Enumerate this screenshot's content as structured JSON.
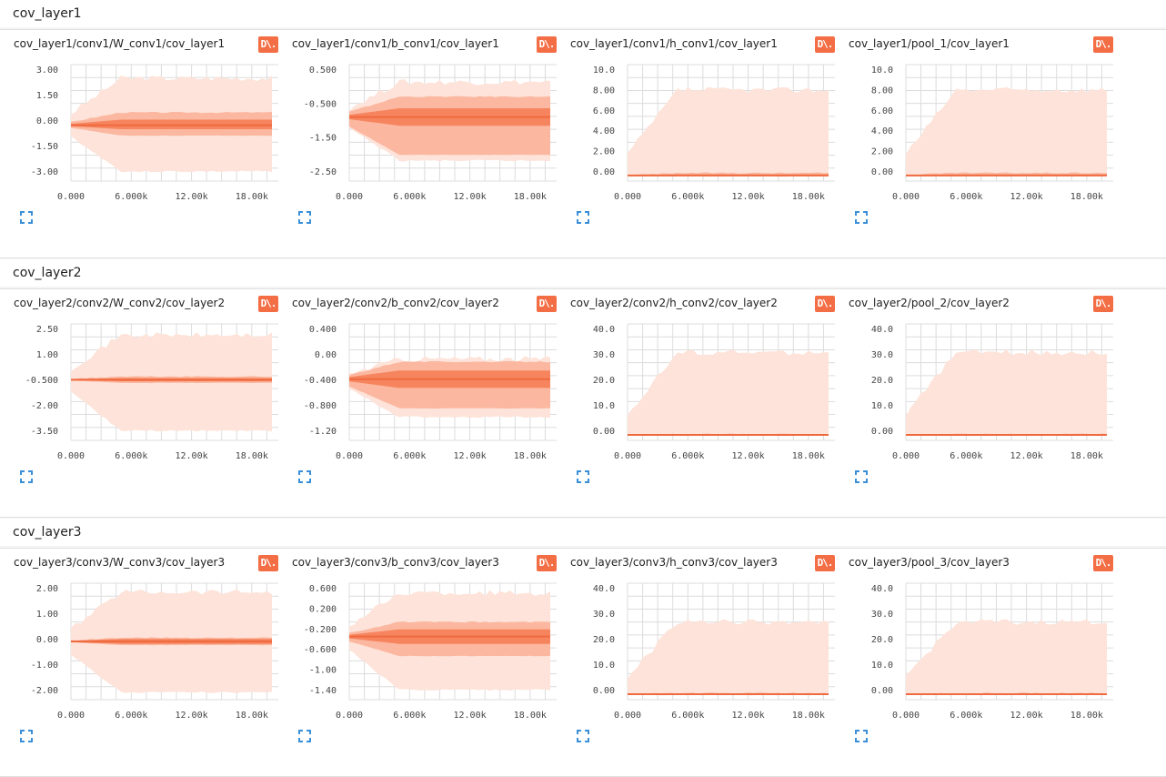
{
  "sections": [
    {
      "title": "cov_layer1",
      "cards": [
        {
          "title": "cov_layer1/conv1/W_conv1/cov_layer1",
          "download_label": "D\\.",
          "y_ticks": [
            "3.00",
            "1.50",
            "0.00",
            "-1.50",
            "-3.00"
          ],
          "x_ticks": [
            "0.000",
            "6.000k",
            "12.00k",
            "18.00k"
          ]
        },
        {
          "title": "cov_layer1/conv1/b_conv1/cov_layer1",
          "download_label": "D\\.",
          "y_ticks": [
            "0.500",
            "-0.500",
            "-1.50",
            "-2.50"
          ],
          "x_ticks": [
            "0.000",
            "6.000k",
            "12.00k",
            "18.00k"
          ]
        },
        {
          "title": "cov_layer1/conv1/h_conv1/cov_layer1",
          "download_label": "D\\.",
          "y_ticks": [
            "10.0",
            "8.00",
            "6.00",
            "4.00",
            "2.00",
            "0.00"
          ],
          "x_ticks": [
            "0.000",
            "6.000k",
            "12.00k",
            "18.00k"
          ]
        },
        {
          "title": "cov_layer1/pool_1/cov_layer1",
          "download_label": "D\\.",
          "y_ticks": [
            "10.0",
            "8.00",
            "6.00",
            "4.00",
            "2.00",
            "0.00"
          ],
          "x_ticks": [
            "0.000",
            "6.000k",
            "12.00k",
            "18.00k"
          ]
        }
      ]
    },
    {
      "title": "cov_layer2",
      "cards": [
        {
          "title": "cov_layer2/conv2/W_conv2/cov_layer2",
          "download_label": "D\\.",
          "y_ticks": [
            "2.50",
            "1.00",
            "-0.500",
            "-2.00",
            "-3.50"
          ],
          "x_ticks": [
            "0.000",
            "6.000k",
            "12.00k",
            "18.00k"
          ]
        },
        {
          "title": "cov_layer2/conv2/b_conv2/cov_layer2",
          "download_label": "D\\.",
          "y_ticks": [
            "0.400",
            "0.00",
            "-0.400",
            "-0.800",
            "-1.20"
          ],
          "x_ticks": [
            "0.000",
            "6.000k",
            "12.00k",
            "18.00k"
          ]
        },
        {
          "title": "cov_layer2/conv2/h_conv2/cov_layer2",
          "download_label": "D\\.",
          "y_ticks": [
            "40.0",
            "30.0",
            "20.0",
            "10.0",
            "0.00"
          ],
          "x_ticks": [
            "0.000",
            "6.000k",
            "12.00k",
            "18.00k"
          ]
        },
        {
          "title": "cov_layer2/pool_2/cov_layer2",
          "download_label": "D\\.",
          "y_ticks": [
            "40.0",
            "30.0",
            "20.0",
            "10.0",
            "0.00"
          ],
          "x_ticks": [
            "0.000",
            "6.000k",
            "12.00k",
            "18.00k"
          ]
        }
      ]
    },
    {
      "title": "cov_layer3",
      "cards": [
        {
          "title": "cov_layer3/conv3/W_conv3/cov_layer3",
          "download_label": "D\\.",
          "y_ticks": [
            "2.00",
            "1.00",
            "0.00",
            "-1.00",
            "-2.00"
          ],
          "x_ticks": [
            "0.000",
            "6.000k",
            "12.00k",
            "18.00k"
          ]
        },
        {
          "title": "cov_layer3/conv3/b_conv3/cov_layer3",
          "download_label": "D\\.",
          "y_ticks": [
            "0.600",
            "0.200",
            "-0.200",
            "-0.600",
            "-1.00",
            "-1.40"
          ],
          "x_ticks": [
            "0.000",
            "6.000k",
            "12.00k",
            "18.00k"
          ]
        },
        {
          "title": "cov_layer3/conv3/h_conv3/cov_layer3",
          "download_label": "D\\.",
          "y_ticks": [
            "40.0",
            "30.0",
            "20.0",
            "10.0",
            "0.00"
          ],
          "x_ticks": [
            "0.000",
            "6.000k",
            "12.00k",
            "18.00k"
          ]
        },
        {
          "title": "cov_layer3/pool_3/cov_layer3",
          "download_label": "D\\.",
          "y_ticks": [
            "40.0",
            "30.0",
            "20.0",
            "10.0",
            "0.00"
          ],
          "x_ticks": [
            "0.000",
            "6.000k",
            "12.00k",
            "18.00k"
          ]
        }
      ]
    }
  ],
  "colors": {
    "band_outer": "#fde3d9",
    "band_mid": "#fbb79f",
    "band_inner": "#f6855f",
    "median": "#ef6a3f",
    "grid": "#dcdcdc",
    "expand": "#3a8fd8"
  },
  "icons": {
    "download": "download-data-icon",
    "expand": "expand-icon"
  },
  "chart_data": [
    {
      "type": "area",
      "title": "cov_layer1/conv1/W_conv1/cov_layer1",
      "x": [
        0,
        20000
      ],
      "ylim": [
        -3.5,
        3.8
      ],
      "bands": {
        "outer": [
          -2.9,
          2.95
        ],
        "mid": [
          -0.65,
          0.8
        ],
        "inner": [
          -0.25,
          0.35
        ],
        "median": 0.0
      }
    },
    {
      "type": "area",
      "title": "cov_layer1/conv1/b_conv1/cov_layer1",
      "x": [
        0,
        20000
      ],
      "ylim": [
        -3.0,
        1.0
      ],
      "bands": {
        "outer": [
          -2.3,
          0.4
        ],
        "mid": [
          -2.1,
          -0.1
        ],
        "inner": [
          -1.1,
          -0.5
        ],
        "median": -0.8
      }
    },
    {
      "type": "area",
      "title": "cov_layer1/conv1/h_conv1/cov_layer1",
      "x": [
        0,
        20000
      ],
      "ylim": [
        -0.5,
        11
      ],
      "bands": {
        "outer": [
          0,
          8.5
        ],
        "mid": [
          0,
          0.3
        ],
        "inner": [
          0,
          0.15
        ],
        "median": 0.05
      }
    },
    {
      "type": "area",
      "title": "cov_layer1/pool_1/cov_layer1",
      "x": [
        0,
        20000
      ],
      "ylim": [
        -0.5,
        11
      ],
      "bands": {
        "outer": [
          0,
          8.5
        ],
        "mid": [
          0,
          0.3
        ],
        "inner": [
          0,
          0.15
        ],
        "median": 0.05
      }
    },
    {
      "type": "area",
      "title": "cov_layer2/conv2/W_conv2/cov_layer2",
      "x": [
        0,
        20000
      ],
      "ylim": [
        -4,
        3.2
      ],
      "bands": {
        "outer": [
          -3.4,
          2.5
        ],
        "mid": [
          -0.45,
          -0.05
        ],
        "inner": [
          -0.35,
          -0.15
        ],
        "median": -0.25
      }
    },
    {
      "type": "area",
      "title": "cov_layer2/conv2/b_conv2/cov_layer2",
      "x": [
        0,
        20000
      ],
      "ylim": [
        -1.4,
        0.6
      ],
      "bands": {
        "outer": [
          -1.0,
          0.0
        ],
        "mid": [
          -0.85,
          -0.05
        ],
        "inner": [
          -0.5,
          -0.2
        ],
        "median": -0.35
      }
    },
    {
      "type": "area",
      "title": "cov_layer2/conv2/h_conv2/cov_layer2",
      "x": [
        0,
        20000
      ],
      "ylim": [
        -2,
        43
      ],
      "bands": {
        "outer": [
          0,
          32
        ],
        "mid": [
          0,
          0.4
        ],
        "inner": [
          0,
          0.2
        ],
        "median": 0.1
      }
    },
    {
      "type": "area",
      "title": "cov_layer2/pool_2/cov_layer2",
      "x": [
        0,
        20000
      ],
      "ylim": [
        -2,
        43
      ],
      "bands": {
        "outer": [
          0,
          32
        ],
        "mid": [
          0,
          0.4
        ],
        "inner": [
          0,
          0.2
        ],
        "median": 0.1
      }
    },
    {
      "type": "area",
      "title": "cov_layer3/conv3/W_conv3/cov_layer3",
      "x": [
        0,
        20000
      ],
      "ylim": [
        -2.4,
        2.4
      ],
      "bands": {
        "outer": [
          -2.1,
          2.05
        ],
        "mid": [
          -0.15,
          0.15
        ],
        "inner": [
          -0.1,
          0.1
        ],
        "median": 0.0
      }
    },
    {
      "type": "area",
      "title": "cov_layer3/conv3/b_conv3/cov_layer3",
      "x": [
        0,
        20000
      ],
      "ylim": [
        -1.6,
        0.8
      ],
      "bands": {
        "outer": [
          -1.4,
          0.6
        ],
        "mid": [
          -0.7,
          0.0
        ],
        "inner": [
          -0.45,
          -0.15
        ],
        "median": -0.3
      }
    },
    {
      "type": "area",
      "title": "cov_layer3/conv3/h_conv3/cov_layer3",
      "x": [
        0,
        20000
      ],
      "ylim": [
        -2,
        43
      ],
      "bands": {
        "outer": [
          0,
          28
        ],
        "mid": [
          0,
          0.5
        ],
        "inner": [
          0,
          0.3
        ],
        "median": 0.1
      }
    },
    {
      "type": "area",
      "title": "cov_layer3/pool_3/cov_layer3",
      "x": [
        0,
        20000
      ],
      "ylim": [
        -2,
        43
      ],
      "bands": {
        "outer": [
          0,
          28
        ],
        "mid": [
          0,
          0.5
        ],
        "inner": [
          0,
          0.3
        ],
        "median": 0.1
      }
    }
  ]
}
